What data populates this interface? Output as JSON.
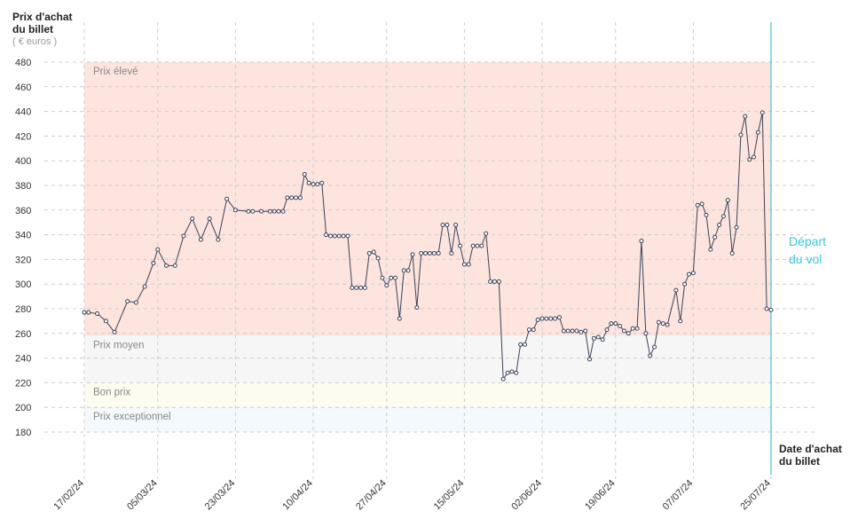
{
  "chart_data": {
    "type": "line",
    "y_label": "Prix d'achat du billet",
    "y_unit": "( € euros )",
    "x_label": "Date d'achat du billet",
    "ylim": [
      180,
      480
    ],
    "yticks": [
      180,
      200,
      220,
      240,
      260,
      280,
      300,
      320,
      340,
      360,
      380,
      400,
      420,
      440,
      460,
      480
    ],
    "xlim": [
      "2024-02-17",
      "2024-07-25"
    ],
    "xticks": [
      {
        "value": "2024-02-17",
        "label": "17/02/24"
      },
      {
        "value": "2024-03-05",
        "label": "05/03/24"
      },
      {
        "value": "2024-03-23",
        "label": "23/03/24"
      },
      {
        "value": "2024-04-10",
        "label": "10/04/24"
      },
      {
        "value": "2024-04-27",
        "label": "27/04/24"
      },
      {
        "value": "2024-05-15",
        "label": "15/05/24"
      },
      {
        "value": "2024-06-02",
        "label": "02/06/24"
      },
      {
        "value": "2024-06-19",
        "label": "19/06/24"
      },
      {
        "value": "2024-07-07",
        "label": "07/07/24"
      },
      {
        "value": "2024-07-25",
        "label": "25/07/24"
      }
    ],
    "grid": true,
    "bands": [
      {
        "label": "Prix élevé",
        "from": 258,
        "to": 480,
        "color": "#fde4de"
      },
      {
        "label": "Prix moyen",
        "from": 220,
        "to": 258,
        "color": "#f6f6f6"
      },
      {
        "label": "Bon prix",
        "from": 200,
        "to": 220,
        "color": "#fcfcf1"
      },
      {
        "label": "Prix exceptionnel",
        "from": 180,
        "to": 200,
        "color": "#f3f9fc"
      }
    ],
    "departure": {
      "date": "2024-07-25",
      "label": "Départ du vol",
      "color": "#3cc6e0"
    },
    "color": "#3a4358",
    "x": [
      "2024-02-17",
      "2024-02-18",
      "2024-02-20",
      "2024-02-22",
      "2024-02-24",
      "2024-02-27",
      "2024-02-29",
      "2024-03-02",
      "2024-03-04",
      "2024-03-05",
      "2024-03-07",
      "2024-03-09",
      "2024-03-11",
      "2024-03-13",
      "2024-03-15",
      "2024-03-17",
      "2024-03-19",
      "2024-03-21",
      "2024-03-23",
      "2024-03-26",
      "2024-03-27",
      "2024-03-29",
      "2024-03-31",
      "2024-04-01",
      "2024-04-02",
      "2024-04-03",
      "2024-04-04",
      "2024-04-05",
      "2024-04-06",
      "2024-04-07",
      "2024-04-08",
      "2024-04-09",
      "2024-04-10",
      "2024-04-11",
      "2024-04-12",
      "2024-04-13",
      "2024-04-14",
      "2024-04-15",
      "2024-04-16",
      "2024-04-17",
      "2024-04-18",
      "2024-04-19",
      "2024-04-20",
      "2024-04-21",
      "2024-04-22",
      "2024-04-23",
      "2024-04-24",
      "2024-04-25",
      "2024-04-26",
      "2024-04-27",
      "2024-04-28",
      "2024-04-29",
      "2024-04-30",
      "2024-05-01",
      "2024-05-02",
      "2024-05-03",
      "2024-05-04",
      "2024-05-05",
      "2024-05-06",
      "2024-05-07",
      "2024-05-08",
      "2024-05-09",
      "2024-05-10",
      "2024-05-11",
      "2024-05-12",
      "2024-05-13",
      "2024-05-14",
      "2024-05-15",
      "2024-05-16",
      "2024-05-17",
      "2024-05-18",
      "2024-05-19",
      "2024-05-20",
      "2024-05-21",
      "2024-05-22",
      "2024-05-23",
      "2024-05-24",
      "2024-05-25",
      "2024-05-26",
      "2024-05-27",
      "2024-05-28",
      "2024-05-29",
      "2024-05-30",
      "2024-05-31",
      "2024-06-01",
      "2024-06-02",
      "2024-06-03",
      "2024-06-04",
      "2024-06-05",
      "2024-06-06",
      "2024-06-07",
      "2024-06-08",
      "2024-06-09",
      "2024-06-10",
      "2024-06-11",
      "2024-06-12",
      "2024-06-13",
      "2024-06-14",
      "2024-06-15",
      "2024-06-16",
      "2024-06-17",
      "2024-06-18",
      "2024-06-19",
      "2024-06-20",
      "2024-06-21",
      "2024-06-22",
      "2024-06-23",
      "2024-06-24",
      "2024-06-25",
      "2024-06-26",
      "2024-06-27",
      "2024-06-28",
      "2024-06-29",
      "2024-06-30",
      "2024-07-01",
      "2024-07-03",
      "2024-07-04",
      "2024-07-05",
      "2024-07-06",
      "2024-07-07",
      "2024-07-08",
      "2024-07-09",
      "2024-07-10",
      "2024-07-11",
      "2024-07-12",
      "2024-07-13",
      "2024-07-14",
      "2024-07-15",
      "2024-07-16",
      "2024-07-17",
      "2024-07-18",
      "2024-07-19",
      "2024-07-20",
      "2024-07-21",
      "2024-07-22",
      "2024-07-23",
      "2024-07-24",
      "2024-07-25"
    ],
    "values": [
      277,
      277,
      276,
      270,
      261,
      286,
      285,
      298,
      317,
      328,
      315,
      315,
      339,
      353,
      336,
      353,
      336,
      369,
      360,
      359,
      359,
      359,
      359,
      359,
      359,
      359,
      370,
      370,
      370,
      370,
      389,
      382,
      381,
      381,
      382,
      340,
      339,
      339,
      339,
      339,
      339,
      297,
      297,
      297,
      297,
      325,
      326,
      321,
      305,
      299,
      305,
      305,
      272,
      311,
      311,
      324,
      281,
      325,
      325,
      325,
      325,
      325,
      348,
      348,
      325,
      348,
      331,
      316,
      316,
      331,
      331,
      331,
      341,
      302,
      302,
      302,
      223,
      228,
      229,
      228,
      251,
      251,
      263,
      263,
      271,
      272,
      272,
      272,
      272,
      273,
      262,
      262,
      262,
      262,
      261,
      262,
      239,
      256,
      257,
      255,
      263,
      268,
      268,
      266,
      262,
      260,
      264,
      264,
      335,
      260,
      242,
      249,
      269,
      268,
      267,
      295,
      270,
      300,
      308,
      309,
      364,
      365,
      356,
      328,
      338,
      348,
      355,
      368,
      325,
      346,
      421,
      436,
      401,
      403,
      423,
      439,
      280,
      279
    ]
  }
}
